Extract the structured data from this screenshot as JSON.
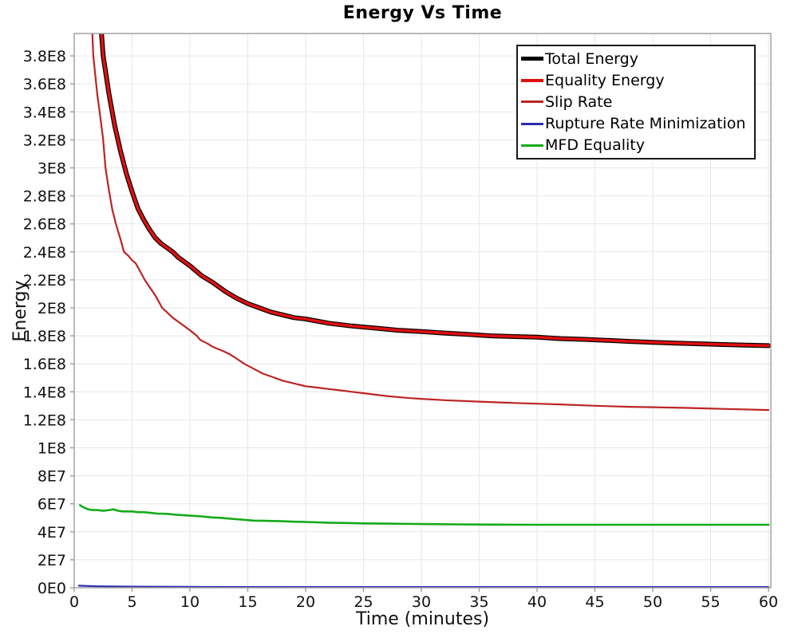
{
  "chart_data": {
    "type": "line",
    "title": "Energy Vs Time",
    "xlabel": "Time (minutes)",
    "ylabel": "Energy",
    "xlim": [
      0,
      60
    ],
    "ylim": [
      0,
      396000000.0
    ],
    "grid": true,
    "legend_position": "top-right",
    "plot_bg": "#ffffff",
    "grid_color": "#e7e7e7",
    "frame_color": "#a3a3a3",
    "tick_color": "#9a9a9a",
    "x_ticks": [
      0,
      5,
      10,
      15,
      20,
      25,
      30,
      35,
      40,
      45,
      50,
      55,
      60
    ],
    "y_ticks": [
      {
        "label": "0E0",
        "value": 0
      },
      {
        "label": "2E7",
        "value": 20000000.0
      },
      {
        "label": "4E7",
        "value": 40000000.0
      },
      {
        "label": "6E7",
        "value": 60000000.0
      },
      {
        "label": "8E7",
        "value": 80000000.0
      },
      {
        "label": "1E8",
        "value": 100000000.0
      },
      {
        "label": "1.2E8",
        "value": 120000000.0
      },
      {
        "label": "1.4E8",
        "value": 140000000.0
      },
      {
        "label": "1.6E8",
        "value": 160000000.0
      },
      {
        "label": "1.8E8",
        "value": 180000000.0
      },
      {
        "label": "2E8",
        "value": 200000000.0
      },
      {
        "label": "2.2E8",
        "value": 220000000.0
      },
      {
        "label": "2.4E8",
        "value": 240000000.0
      },
      {
        "label": "2.6E8",
        "value": 260000000.0
      },
      {
        "label": "2.8E8",
        "value": 280000000.0
      },
      {
        "label": "3E8",
        "value": 300000000.0
      },
      {
        "label": "3.2E8",
        "value": 320000000.0
      },
      {
        "label": "3.4E8",
        "value": 340000000.0
      },
      {
        "label": "3.6E8",
        "value": 360000000.0
      },
      {
        "label": "3.8E8",
        "value": 380000000.0
      }
    ],
    "series": [
      {
        "name": "Total Energy",
        "color": "#000000",
        "line_width": 6,
        "legend_swatch_height": 5,
        "points": [
          [
            1.2,
            620000000.0
          ],
          [
            1.6,
            510000000.0
          ],
          [
            2.0,
            435000000.0
          ],
          [
            2.5,
            380000000.0
          ],
          [
            3.0,
            353000000.0
          ],
          [
            3.5,
            330000000.0
          ],
          [
            4.0,
            312000000.0
          ],
          [
            4.5,
            296000000.0
          ],
          [
            5.0,
            283000000.0
          ],
          [
            5.5,
            271000000.0
          ],
          [
            6.0,
            263000000.0
          ],
          [
            6.5,
            256000000.0
          ],
          [
            7.0,
            250000000.0
          ],
          [
            7.5,
            246000000.0
          ],
          [
            8.0,
            243000000.0
          ],
          [
            8.5,
            240000000.0
          ],
          [
            9.0,
            236000000.0
          ],
          [
            9.5,
            233000000.0
          ],
          [
            10,
            230000000.0
          ],
          [
            11,
            223000000.0
          ],
          [
            12,
            218000000.0
          ],
          [
            13,
            212000000.0
          ],
          [
            14,
            207000000.0
          ],
          [
            15,
            203000000.0
          ],
          [
            16,
            200000000.0
          ],
          [
            17,
            197000000.0
          ],
          [
            18,
            195000000.0
          ],
          [
            19,
            193000000.0
          ],
          [
            20,
            192000000.0
          ],
          [
            22,
            189000000.0
          ],
          [
            24,
            187000000.0
          ],
          [
            26,
            185500000.0
          ],
          [
            28,
            184000000.0
          ],
          [
            30,
            183000000.0
          ],
          [
            32,
            182000000.0
          ],
          [
            34,
            181000000.0
          ],
          [
            36,
            180000000.0
          ],
          [
            38,
            179500000.0
          ],
          [
            40,
            179000000.0
          ],
          [
            42,
            178000000.0
          ],
          [
            44,
            177500000.0
          ],
          [
            46,
            176800000.0
          ],
          [
            48,
            176000000.0
          ],
          [
            50,
            175400000.0
          ],
          [
            52,
            174800000.0
          ],
          [
            54,
            174300000.0
          ],
          [
            56,
            173800000.0
          ],
          [
            58,
            173400000.0
          ],
          [
            60,
            173000000.0
          ]
        ]
      },
      {
        "name": "Equality Energy",
        "color": "#de1010",
        "line_width": 3.6,
        "legend_swatch_height": 4,
        "points": [
          [
            1.2,
            620000000.0
          ],
          [
            1.6,
            510000000.0
          ],
          [
            2.0,
            435000000.0
          ],
          [
            2.5,
            380000000.0
          ],
          [
            3.0,
            353000000.0
          ],
          [
            3.5,
            330000000.0
          ],
          [
            4.0,
            312000000.0
          ],
          [
            4.5,
            296000000.0
          ],
          [
            5.0,
            283000000.0
          ],
          [
            5.5,
            271000000.0
          ],
          [
            6.0,
            263000000.0
          ],
          [
            6.5,
            256000000.0
          ],
          [
            7.0,
            250000000.0
          ],
          [
            7.5,
            246000000.0
          ],
          [
            8.0,
            243000000.0
          ],
          [
            8.5,
            240000000.0
          ],
          [
            9.0,
            236000000.0
          ],
          [
            9.5,
            233000000.0
          ],
          [
            10,
            230000000.0
          ],
          [
            11,
            223000000.0
          ],
          [
            12,
            218000000.0
          ],
          [
            13,
            212000000.0
          ],
          [
            14,
            207000000.0
          ],
          [
            15,
            203000000.0
          ],
          [
            16,
            200000000.0
          ],
          [
            17,
            197000000.0
          ],
          [
            18,
            195000000.0
          ],
          [
            19,
            193000000.0
          ],
          [
            20,
            192000000.0
          ],
          [
            22,
            189000000.0
          ],
          [
            24,
            187000000.0
          ],
          [
            26,
            185500000.0
          ],
          [
            28,
            184000000.0
          ],
          [
            30,
            183000000.0
          ],
          [
            32,
            182000000.0
          ],
          [
            34,
            181000000.0
          ],
          [
            36,
            180000000.0
          ],
          [
            38,
            179500000.0
          ],
          [
            40,
            179000000.0
          ],
          [
            42,
            178000000.0
          ],
          [
            44,
            177500000.0
          ],
          [
            46,
            176800000.0
          ],
          [
            48,
            176000000.0
          ],
          [
            50,
            175400000.0
          ],
          [
            52,
            174800000.0
          ],
          [
            54,
            174300000.0
          ],
          [
            56,
            173800000.0
          ],
          [
            58,
            173400000.0
          ],
          [
            60,
            173000000.0
          ]
        ]
      },
      {
        "name": "Slip Rate",
        "color": "#bd2424",
        "line_width": 2.2,
        "legend_swatch_height": 3,
        "points": [
          [
            1.0,
            530000000.0
          ],
          [
            1.3,
            450000000.0
          ],
          [
            1.65,
            380000000.0
          ],
          [
            2.0,
            352000000.0
          ],
          [
            2.2,
            340000000.0
          ],
          [
            2.5,
            320000000.0
          ],
          [
            2.7,
            300000000.0
          ],
          [
            3.0,
            284000000.0
          ],
          [
            3.3,
            270000000.0
          ],
          [
            3.6,
            260000000.0
          ],
          [
            4.0,
            249000000.0
          ],
          [
            4.3,
            240000000.0
          ],
          [
            4.7,
            237000000.0
          ],
          [
            5.0,
            234000000.0
          ],
          [
            5.3,
            232000000.0
          ],
          [
            5.7,
            226000000.0
          ],
          [
            6.1,
            220000000.0
          ],
          [
            6.5,
            215000000.0
          ],
          [
            7.0,
            209000000.0
          ],
          [
            7.6,
            200000000.0
          ],
          [
            8.0,
            197000000.0
          ],
          [
            8.5,
            193000000.0
          ],
          [
            9.0,
            190000000.0
          ],
          [
            9.5,
            187000000.0
          ],
          [
            10.0,
            184000000.0
          ],
          [
            10.6,
            180000000.0
          ],
          [
            10.9,
            177000000.0
          ],
          [
            11.5,
            174500000.0
          ],
          [
            12.0,
            172000000.0
          ],
          [
            12.9,
            169000000.0
          ],
          [
            13.4,
            167000000.0
          ],
          [
            13.8,
            165000000.0
          ],
          [
            14.7,
            160000000.0
          ],
          [
            15.5,
            156500000.0
          ],
          [
            16.3,
            153000000.0
          ],
          [
            17,
            151000000.0
          ],
          [
            18,
            148000000.0
          ],
          [
            19,
            146000000.0
          ],
          [
            20,
            144000000.0
          ],
          [
            21,
            143000000.0
          ],
          [
            22,
            142000000.0
          ],
          [
            23,
            141000000.0
          ],
          [
            24,
            140000000.0
          ],
          [
            25,
            139000000.0
          ],
          [
            27,
            137000000.0
          ],
          [
            29,
            135500000.0
          ],
          [
            30,
            135000000.0
          ],
          [
            32,
            134000000.0
          ],
          [
            35,
            133000000.0
          ],
          [
            38,
            132000000.0
          ],
          [
            40,
            131500000.0
          ],
          [
            42,
            131000000.0
          ],
          [
            45,
            130000000.0
          ],
          [
            48,
            129300000.0
          ],
          [
            50,
            129000000.0
          ],
          [
            53,
            128500000.0
          ],
          [
            56,
            127800000.0
          ],
          [
            60,
            127000000.0
          ]
        ]
      },
      {
        "name": "Rupture Rate Minimization",
        "color": "#2c2cb0",
        "line_width": 2.2,
        "legend_swatch_height": 3,
        "points": [
          [
            0.4,
            1500000.0
          ],
          [
            2,
            1000000.0
          ],
          [
            5,
            800000.0
          ],
          [
            10,
            600000.0
          ],
          [
            20,
            500000.0
          ],
          [
            30,
            500000.0
          ],
          [
            40,
            500000.0
          ],
          [
            50,
            500000.0
          ],
          [
            60,
            500000.0
          ]
        ]
      },
      {
        "name": "MFD Equality",
        "color": "#15aa1a",
        "line_width": 2.6,
        "legend_swatch_height": 3,
        "points": [
          [
            0.5,
            59000000.0
          ],
          [
            0.8,
            57500000.0
          ],
          [
            1.2,
            56000000.0
          ],
          [
            1.6,
            55500000.0
          ],
          [
            2.0,
            55500000.0
          ],
          [
            2.5,
            55000000.0
          ],
          [
            3.0,
            55500000.0
          ],
          [
            3.4,
            56000000.0
          ],
          [
            3.8,
            55000000.0
          ],
          [
            4.2,
            54500000.0
          ],
          [
            5.0,
            54500000.0
          ],
          [
            5.5,
            54000000.0
          ],
          [
            6.0,
            54000000.0
          ],
          [
            6.6,
            53500000.0
          ],
          [
            7.2,
            53000000.0
          ],
          [
            8.0,
            52800000.0
          ],
          [
            8.8,
            52200000.0
          ],
          [
            10,
            51500000.0
          ],
          [
            11,
            51000000.0
          ],
          [
            12,
            50200000.0
          ],
          [
            12.5,
            50000000.0
          ],
          [
            13,
            49700000.0
          ],
          [
            14,
            49000000.0
          ],
          [
            15,
            48300000.0
          ],
          [
            15.5,
            48000000.0
          ],
          [
            16.5,
            47800000.0
          ],
          [
            18,
            47500000.0
          ],
          [
            19,
            47200000.0
          ],
          [
            20,
            47000000.0
          ],
          [
            22,
            46500000.0
          ],
          [
            24,
            46200000.0
          ],
          [
            25,
            46000000.0
          ],
          [
            27,
            45800000.0
          ],
          [
            30,
            45500000.0
          ],
          [
            33,
            45300000.0
          ],
          [
            36,
            45100000.0
          ],
          [
            40,
            45000000.0
          ],
          [
            45,
            45000000.0
          ],
          [
            50,
            45000000.0
          ],
          [
            55,
            45000000.0
          ],
          [
            60,
            45000000.0
          ]
        ]
      }
    ]
  }
}
